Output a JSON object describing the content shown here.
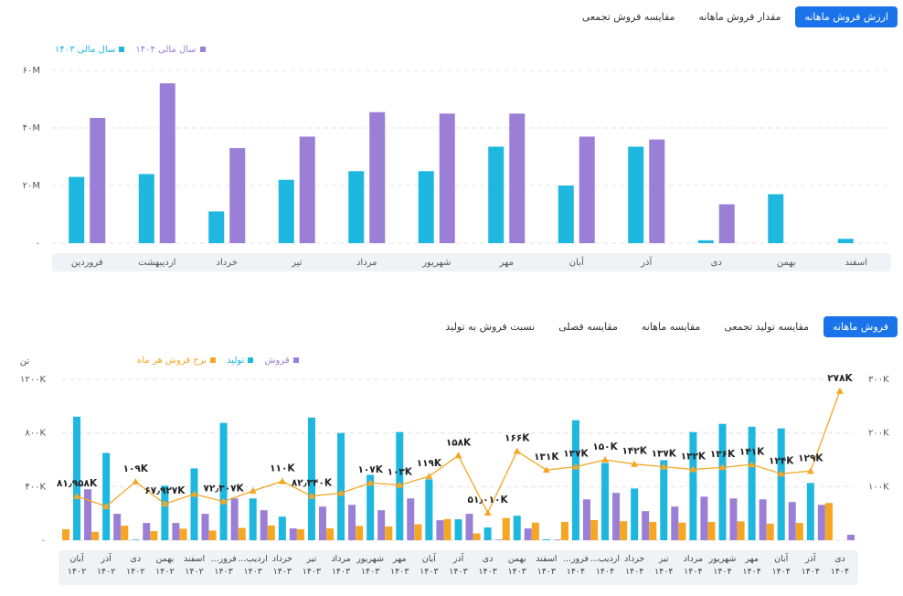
{
  "tabs_top": {
    "items": [
      "ارزش فروش ماهانه",
      "مقدار فروش ماهانه",
      "مقایسه فروش تجمعی"
    ],
    "active": 0
  },
  "tabs_bottom": {
    "items": [
      "فروش ماهانه",
      "مقایسه تولید تجمعی",
      "مقایسه ماهانه",
      "مقایسه فصلی",
      "نسبت فروش به تولید"
    ],
    "active": 0
  },
  "chart_data": [
    {
      "type": "bar",
      "categories": [
        "فروردین",
        "اردیبهشت",
        "خرداد",
        "تیر",
        "مرداد",
        "شهریور",
        "مهر",
        "آبان",
        "آذر",
        "دی",
        "بهمن",
        "اسفند"
      ],
      "series": [
        {
          "name": "سال مالی ۱۴۰۴",
          "color": "#9b7fd6",
          "values": [
            43500000,
            55500000,
            33000000,
            37000000,
            45500000,
            45000000,
            45000000,
            37000000,
            36000000,
            13500000,
            null,
            null
          ]
        },
        {
          "name": "سال مالی ۱۴۰۳",
          "color": "#1db7df",
          "values": [
            23000000,
            24000000,
            11000000,
            22000000,
            25000000,
            25000000,
            33500000,
            20000000,
            33500000,
            1000000,
            17000000,
            1500000
          ]
        }
      ],
      "ylim": [
        0,
        60000000
      ],
      "yticks": [
        {
          "value": 0,
          "label": "۰"
        },
        {
          "value": 20000000,
          "label": "۲۰M"
        },
        {
          "value": 40000000,
          "label": "۴۰M"
        },
        {
          "value": 60000000,
          "label": "۶۰M"
        }
      ],
      "grid": true
    },
    {
      "type": "bar_line",
      "y_label": "تن",
      "categories": [
        "آبان ۱۴۰۲",
        "آذر ۱۴۰۲",
        "دی ۱۴۰۲",
        "بهمن ۱۴۰۲",
        "اسفند ۱۴۰۲",
        "فرور... ۱۴۰۳",
        "اردیب... ۱۴۰۳",
        "خرداد ۱۴۰۳",
        "تیر ۱۴۰۳",
        "مرداد ۱۴۰۳",
        "شهریور ۱۴۰۳",
        "مهر ۱۴۰۳",
        "آبان ۱۴۰۳",
        "آذر ۱۴۰۳",
        "دی ۱۴۰۳",
        "بهمن ۱۴۰۳",
        "اسفند ۱۴۰۳",
        "فرور... ۱۴۰۴",
        "اردیب... ۱۴۰۴",
        "خرداد ۱۴۰۴",
        "تیر ۱۴۰۴",
        "مرداد ۱۴۰۴",
        "شهریور ۱۴۰۴",
        "مهر ۱۴۰۴",
        "آبان ۱۴۰۴",
        "آذر ۱۴۰۴",
        "دی ۱۴۰۴"
      ],
      "series": [
        {
          "name": "فروش",
          "color": "#9b7fd6",
          "values": [
            380000,
            197000,
            129000,
            129000,
            197000,
            312000,
            224000,
            88000,
            251000,
            264000,
            224000,
            312000,
            149000,
            197000,
            5000,
            88000,
            5000,
            305000,
            353000,
            217000,
            251000,
            325000,
            312000,
            305000,
            285000,
            264000,
            41000
          ]
        },
        {
          "name": "تولید",
          "color": "#1db7df",
          "values": [
            922000,
            651000,
            5000,
            407000,
            536000,
            875000,
            312000,
            176000,
            915000,
            800000,
            488000,
            807000,
            454000,
            156000,
            95000,
            183000,
            7000,
            895000,
            576000,
            386000,
            597000,
            807000,
            868000,
            847000,
            834000,
            427000,
            null
          ]
        },
        {
          "name": "نرخ فروش هر ماه",
          "color": "#f5a623",
          "axis": "y2",
          "values": [
            81958,
            63000,
            109000,
            67927,
            86000,
            72307,
            92000,
            110000,
            82340,
            88000,
            107000,
            103000,
            119000,
            158000,
            51010,
            166000,
            131000,
            137000,
            150000,
            142000,
            137000,
            132000,
            136000,
            141000,
            124000,
            129000,
            278000
          ],
          "value_labels": [
            "۸۱٫۹۵۸K",
            null,
            "۱۰۹K",
            "۶۷٫۹۲۷K",
            null,
            "۷۲٫۳۰۷K",
            null,
            "۱۱۰K",
            "۸۲٫۳۴۰K",
            null,
            "۱۰۷K",
            "۱۰۳K",
            "۱۱۹K",
            "۱۵۸K",
            "۵۱٫۰۱۰K",
            "۱۶۶K",
            "۱۳۱K",
            "۱۳۷K",
            "۱۵۰K",
            "۱۴۲K",
            "۱۳۷K",
            "۱۳۲K",
            "۱۳۶K",
            "۱۴۱K",
            "۱۲۴K",
            "۱۲۹K",
            "۲۷۸K"
          ]
        }
      ],
      "ylim": [
        0,
        1200000
      ],
      "yticks": [
        {
          "value": 0,
          "label": "۰"
        },
        {
          "value": 400000,
          "label": "۴۰۰K"
        },
        {
          "value": 800000,
          "label": "۸۰۰K"
        },
        {
          "value": 1200000,
          "label": "۱۲۰۰K"
        }
      ],
      "y2lim": [
        0,
        300000
      ],
      "y2ticks": [
        {
          "value": 100000,
          "label": "۱۰۰K"
        },
        {
          "value": 200000,
          "label": "۲۰۰K"
        },
        {
          "value": 300000,
          "label": "۳۰۰K"
        }
      ],
      "grid": true
    }
  ]
}
